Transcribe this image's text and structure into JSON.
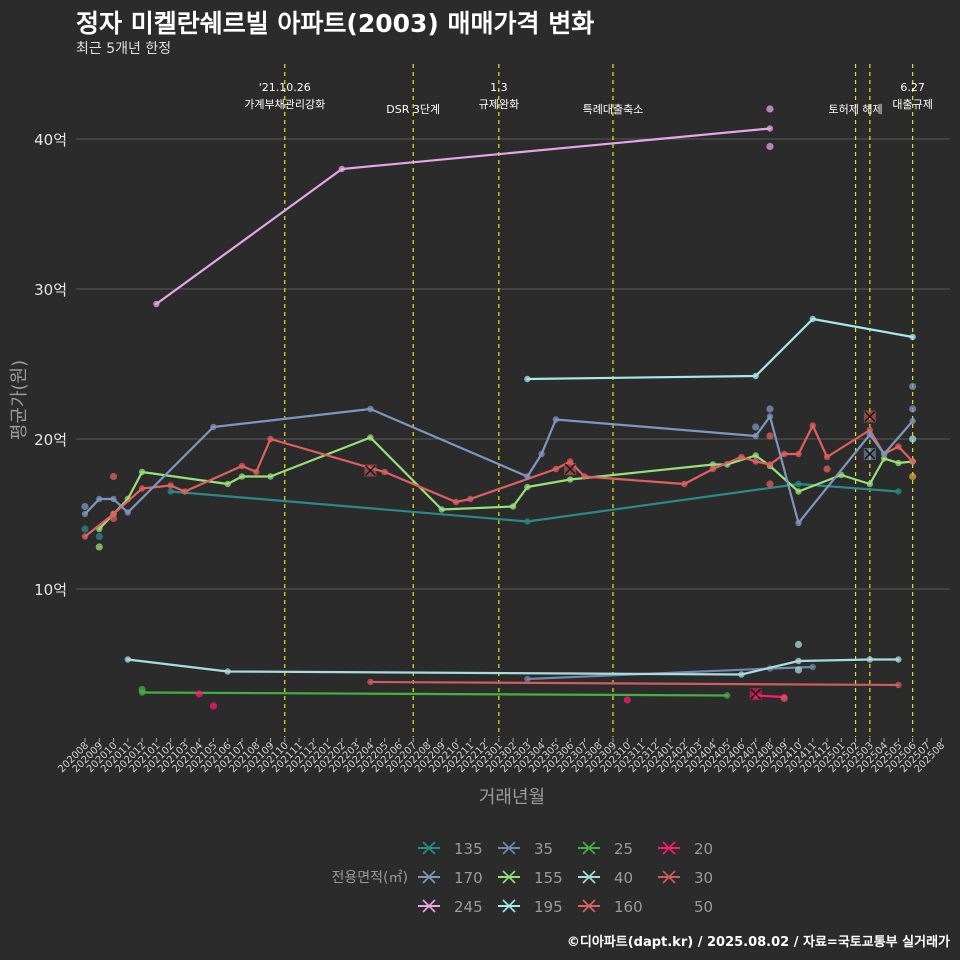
{
  "header": {
    "title": "정자 미켈란쉐르빌 아파트(2003) 매매가격 변화",
    "subtitle": "최근 5개년 한정"
  },
  "footer": {
    "caption": "©디아파트(dapt.kr) / 2025.08.02 / 자료=국토교통부 실거래가"
  },
  "colors": {
    "background": "#2b2b2b",
    "grid": "#5a5a5a",
    "event_line": "#e5e516",
    "135": "#2a8a8a",
    "155": "#98e07a",
    "160": "#e06060",
    "170": "#7f97bd",
    "195": "#a9e8ea",
    "20": "#ff1a70",
    "245": "#e6a7e6",
    "25": "#44b044",
    "30": "#d05c5c",
    "35": "#7288ad",
    "40": "#a8dcdf",
    "50": "#d4a93a"
  },
  "chart_data": {
    "type": "line",
    "title": "정자 미켈란쉐르빌 아파트(2003) 매매가격 변화",
    "subtitle": "최근 5개년 한정",
    "xlabel": "거래년월",
    "ylabel": "평균가(원)",
    "yticks": [
      10,
      20,
      30,
      40
    ],
    "ytick_labels": [
      "10억",
      "20억",
      "30억",
      "40억"
    ],
    "ylim": [
      0,
      46
    ],
    "xlim": [
      0,
      60
    ],
    "x_categories": [
      "202008",
      "202009",
      "202010",
      "202011",
      "202012",
      "202101",
      "202102",
      "202103",
      "202104",
      "202105",
      "202106",
      "202107",
      "202108",
      "202109",
      "202110",
      "202111",
      "202112",
      "202201",
      "202202",
      "202203",
      "202204",
      "202205",
      "202206",
      "202207",
      "202208",
      "202209",
      "202210",
      "202211",
      "202212",
      "202301",
      "202302",
      "202303",
      "202304",
      "202305",
      "202306",
      "202307",
      "202308",
      "202309",
      "202310",
      "202311",
      "202312",
      "202401",
      "202402",
      "202403",
      "202404",
      "202405",
      "202406",
      "202407",
      "202408",
      "202409",
      "202410",
      "202411",
      "202412",
      "202501",
      "202502",
      "202503",
      "202504",
      "202505",
      "202506",
      "202507",
      "202508"
    ],
    "events": [
      {
        "x": 14,
        "label": "'21.10.26\n가계부채관리강화"
      },
      {
        "x": 23,
        "label": "DSR 3단계"
      },
      {
        "x": 29,
        "label": "1.3\n규제완화"
      },
      {
        "x": 37,
        "label": "특례대출축소"
      },
      {
        "x": 54,
        "label": "토허제 해제"
      },
      {
        "x": 55,
        "label": ""
      },
      {
        "x": 58,
        "label": "6.27\n대출규제"
      }
    ],
    "legend_title": "전용면적(㎡)",
    "legend": [
      "135",
      "170",
      "245",
      "35",
      "155",
      "195",
      "25",
      "40",
      "160",
      "20",
      "30",
      "50"
    ],
    "series": [
      {
        "name": "135",
        "points": [
          [
            6,
            16.5
          ],
          [
            31,
            14.5
          ],
          [
            50,
            17.0
          ],
          [
            57,
            16.5
          ]
        ]
      },
      {
        "name": "155",
        "points": [
          [
            1,
            14.0
          ],
          [
            2,
            15.0
          ],
          [
            3,
            16.0
          ],
          [
            4,
            17.8
          ],
          [
            10,
            17.0
          ],
          [
            11,
            17.5
          ],
          [
            13,
            17.5
          ],
          [
            20,
            20.1
          ],
          [
            25,
            15.3
          ],
          [
            30,
            15.5
          ],
          [
            31,
            16.8
          ],
          [
            34,
            17.3
          ],
          [
            44,
            18.3
          ],
          [
            45,
            18.3
          ],
          [
            47,
            18.9
          ],
          [
            48,
            18.2
          ],
          [
            50,
            16.5
          ],
          [
            53,
            17.6
          ],
          [
            55,
            17.0
          ],
          [
            56,
            18.7
          ],
          [
            57,
            18.4
          ],
          [
            58,
            18.5
          ]
        ]
      },
      {
        "name": "160",
        "points": [
          [
            0,
            13.5
          ],
          [
            2,
            15.0
          ],
          [
            4,
            16.7
          ],
          [
            6,
            16.9
          ],
          [
            7,
            16.5
          ],
          [
            11,
            18.2
          ],
          [
            12,
            17.8
          ],
          [
            13,
            20.0
          ],
          [
            21,
            17.8
          ],
          [
            26,
            15.8
          ],
          [
            27,
            16.0
          ],
          [
            33,
            18.0
          ],
          [
            34,
            18.5
          ],
          [
            35,
            17.5
          ],
          [
            42,
            17.0
          ],
          [
            44,
            18.0
          ],
          [
            46,
            18.8
          ],
          [
            47,
            18.5
          ],
          [
            48,
            18.3
          ],
          [
            49,
            19.0
          ],
          [
            50,
            19.0
          ],
          [
            51,
            20.9
          ],
          [
            52,
            18.8
          ],
          [
            55,
            20.6
          ],
          [
            56,
            19.0
          ],
          [
            57,
            19.5
          ],
          [
            58,
            18.5
          ]
        ]
      },
      {
        "name": "170",
        "points": [
          [
            0,
            15.0
          ],
          [
            1,
            16.0
          ],
          [
            2,
            16.0
          ],
          [
            3,
            15.1
          ],
          [
            9,
            20.8
          ],
          [
            20,
            22.0
          ],
          [
            31,
            17.5
          ],
          [
            32,
            19.0
          ],
          [
            33,
            21.3
          ],
          [
            47,
            20.2
          ],
          [
            48,
            21.5
          ],
          [
            50,
            14.4
          ],
          [
            55,
            20.3
          ],
          [
            56,
            19.0
          ],
          [
            58,
            21.2
          ]
        ]
      },
      {
        "name": "195",
        "points": [
          [
            31,
            24.0
          ],
          [
            47,
            24.2
          ],
          [
            51,
            28.0
          ],
          [
            58,
            26.8
          ]
        ]
      },
      {
        "name": "20",
        "points": [
          [
            47,
            2.9
          ],
          [
            49,
            2.8
          ]
        ]
      },
      {
        "name": "245",
        "points": [
          [
            5,
            29.0
          ],
          [
            18,
            38.0
          ],
          [
            48,
            40.7
          ]
        ]
      },
      {
        "name": "25",
        "points": [
          [
            4,
            3.1
          ],
          [
            45,
            2.9
          ]
        ]
      },
      {
        "name": "30",
        "points": [
          [
            20,
            3.8
          ],
          [
            57,
            3.6
          ]
        ]
      },
      {
        "name": "35",
        "points": [
          [
            31,
            4.0
          ],
          [
            48,
            4.7
          ],
          [
            51,
            4.8
          ]
        ]
      },
      {
        "name": "40",
        "points": [
          [
            3,
            5.3
          ],
          [
            10,
            4.5
          ],
          [
            46,
            4.3
          ],
          [
            50,
            5.2
          ],
          [
            55,
            5.3
          ],
          [
            57,
            5.3
          ]
        ]
      }
    ],
    "scatter": [
      {
        "name": "20",
        "points": [
          [
            8,
            3.0
          ],
          [
            9,
            2.2
          ],
          [
            38,
            2.6
          ]
        ]
      },
      {
        "name": "25",
        "points": [
          [
            4,
            3.3
          ]
        ]
      },
      {
        "name": "30",
        "points": [
          [
            49,
            2.7
          ]
        ]
      },
      {
        "name": "245",
        "points": [
          [
            48,
            42.0
          ],
          [
            48,
            39.5
          ]
        ]
      },
      {
        "name": "135",
        "points": [
          [
            0,
            14.0
          ],
          [
            1,
            13.5
          ]
        ]
      },
      {
        "name": "155",
        "points": [
          [
            1,
            12.8
          ]
        ]
      },
      {
        "name": "160",
        "points": [
          [
            2,
            17.5
          ],
          [
            2,
            14.7
          ],
          [
            48,
            17.0
          ],
          [
            48,
            20.2
          ],
          [
            52,
            18.0
          ]
        ]
      },
      {
        "name": "170",
        "points": [
          [
            0,
            15.5
          ],
          [
            47,
            20.8
          ],
          [
            48,
            22.0
          ],
          [
            58,
            22.0
          ],
          [
            58,
            23.5
          ]
        ]
      },
      {
        "name": "40",
        "points": [
          [
            50,
            6.3
          ],
          [
            50,
            4.6
          ],
          [
            58,
            20.0
          ]
        ]
      },
      {
        "name": "50",
        "points": [
          [
            58,
            17.5
          ]
        ]
      }
    ],
    "cross_markers": [
      {
        "name": "160",
        "points": [
          [
            20,
            17.9
          ],
          [
            34,
            18.0
          ],
          [
            55,
            21.5
          ]
        ]
      },
      {
        "name": "170",
        "points": [
          [
            55,
            19.0
          ]
        ]
      },
      {
        "name": "20",
        "points": [
          [
            47,
            3.0
          ]
        ]
      }
    ]
  }
}
